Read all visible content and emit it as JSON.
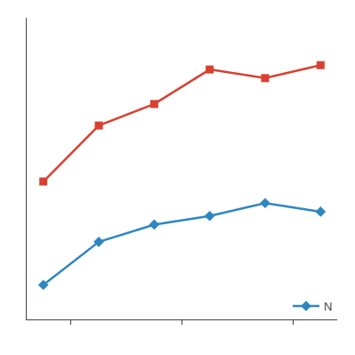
{
  "chart_data": {
    "type": "line",
    "x": [
      0,
      1,
      2,
      3,
      4,
      5
    ],
    "series": [
      {
        "name": "N",
        "color": "#2e86c1",
        "values": [
          28,
          38,
          42,
          44,
          47,
          45
        ],
        "marker": "diamond",
        "line_style": "solid"
      },
      {
        "color": "#d94030",
        "values": [
          52,
          65,
          70,
          78,
          76,
          79
        ],
        "marker": "square",
        "line_style": "solid"
      }
    ],
    "xlim": [
      -0.3,
      5.3
    ],
    "xticks": [
      0.5,
      2.5,
      4.5
    ],
    "ylim": [
      20,
      90
    ],
    "yticks": [],
    "tick_labels": false,
    "grid": false,
    "legend": "lower right"
  }
}
